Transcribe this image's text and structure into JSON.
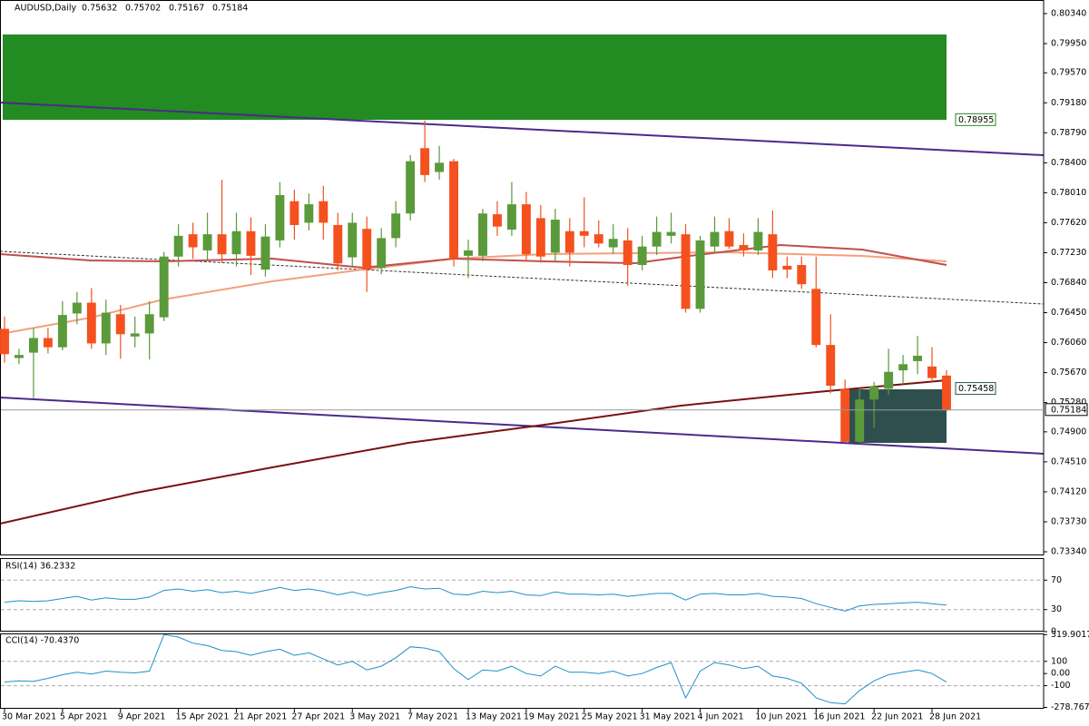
{
  "chart_data": [
    {
      "type": "candlestick",
      "title": "AUDUSD,Daily",
      "categories": [
        "30 Mar 2021",
        null,
        null,
        null,
        "5 Apr 2021",
        null,
        null,
        null,
        "9 Apr 2021",
        null,
        null,
        null,
        "15 Apr 2021",
        null,
        null,
        null,
        "21 Apr 2021",
        null,
        null,
        null,
        "27 Apr 2021",
        null,
        null,
        null,
        "3 May 2021",
        null,
        null,
        null,
        "7 May 2021",
        null,
        null,
        null,
        "13 May 2021",
        null,
        null,
        null,
        "19 May 2021",
        null,
        null,
        null,
        "25 May 2021",
        null,
        null,
        null,
        "31 May 2021",
        null,
        null,
        null,
        "4 Jun 2021",
        null,
        null,
        null,
        "10 Jun 2021",
        null,
        null,
        null,
        "16 Jun 2021",
        null,
        null,
        null,
        "22 Jun 2021",
        null,
        null,
        null,
        "28 Jun 2021",
        null
      ],
      "open": [
        0.7624,
        0.7586,
        0.7593,
        0.7612,
        0.76,
        0.7644,
        0.7658,
        0.7605,
        0.7643,
        0.7614,
        0.7618,
        0.7639,
        0.7718,
        0.7747,
        0.7726,
        0.7747,
        0.7721,
        0.7751,
        0.7701,
        0.7739,
        0.779,
        0.7762,
        0.779,
        0.7759,
        0.7717,
        0.7754,
        0.7703,
        0.7742,
        0.7774,
        0.7859,
        0.7828,
        0.7842,
        0.7719,
        0.7719,
        0.7773,
        0.7753,
        0.7786,
        0.7768,
        0.7723,
        0.7751,
        0.7751,
        0.7747,
        0.773,
        0.7739,
        0.7707,
        0.7731,
        0.7745,
        0.7747,
        0.765,
        0.7731,
        0.7751,
        0.7733,
        0.7726,
        0.7747,
        0.7706,
        0.7707,
        0.7676,
        0.7603,
        0.7546,
        0.7477,
        0.7532,
        0.7546,
        0.757,
        0.7582,
        0.7575,
        0.75632
      ],
      "high": [
        0.764,
        0.7598,
        0.7625,
        0.7625,
        0.766,
        0.7672,
        0.7677,
        0.7662,
        0.7655,
        0.764,
        0.766,
        0.7724,
        0.776,
        0.7762,
        0.7775,
        0.7818,
        0.7775,
        0.7769,
        0.776,
        0.7815,
        0.7805,
        0.78,
        0.781,
        0.7775,
        0.7775,
        0.777,
        0.7755,
        0.779,
        0.785,
        0.7895,
        0.7862,
        0.7845,
        0.774,
        0.778,
        0.779,
        0.7815,
        0.7802,
        0.7785,
        0.778,
        0.7768,
        0.7795,
        0.7765,
        0.776,
        0.7755,
        0.7745,
        0.777,
        0.7775,
        0.776,
        0.7745,
        0.777,
        0.7768,
        0.7748,
        0.7768,
        0.7778,
        0.7718,
        0.7718,
        0.7718,
        0.7643,
        0.7558,
        0.7545,
        0.7555,
        0.7598,
        0.759,
        0.7615,
        0.76,
        0.75702
      ],
      "low": [
        0.758,
        0.7578,
        0.7534,
        0.7592,
        0.7596,
        0.763,
        0.7598,
        0.759,
        0.7585,
        0.76,
        0.7584,
        0.7634,
        0.7705,
        0.7715,
        0.7712,
        0.771,
        0.7705,
        0.7694,
        0.7692,
        0.773,
        0.774,
        0.7752,
        0.774,
        0.77,
        0.7705,
        0.7672,
        0.7695,
        0.773,
        0.7765,
        0.7815,
        0.7818,
        0.7705,
        0.769,
        0.7712,
        0.7745,
        0.7745,
        0.7712,
        0.771,
        0.7712,
        0.7705,
        0.773,
        0.773,
        0.7722,
        0.768,
        0.77,
        0.772,
        0.7735,
        0.7645,
        0.7645,
        0.7722,
        0.7728,
        0.7718,
        0.772,
        0.769,
        0.769,
        0.7676,
        0.76,
        0.754,
        0.7477,
        0.7475,
        0.7495,
        0.7538,
        0.7552,
        0.7565,
        0.7555,
        0.75167
      ],
      "close": [
        0.7591,
        0.759,
        0.7612,
        0.76,
        0.7642,
        0.7658,
        0.7605,
        0.7645,
        0.7617,
        0.7618,
        0.7643,
        0.7718,
        0.7745,
        0.773,
        0.7747,
        0.7721,
        0.7751,
        0.7719,
        0.7744,
        0.7798,
        0.7759,
        0.7786,
        0.7762,
        0.7709,
        0.7762,
        0.7701,
        0.7742,
        0.7774,
        0.7842,
        0.7824,
        0.784,
        0.7715,
        0.7726,
        0.7774,
        0.7757,
        0.7786,
        0.7721,
        0.7718,
        0.7766,
        0.7723,
        0.7745,
        0.7735,
        0.7741,
        0.7707,
        0.7731,
        0.775,
        0.775,
        0.765,
        0.7739,
        0.775,
        0.7731,
        0.7726,
        0.775,
        0.77,
        0.7701,
        0.7682,
        0.7603,
        0.755,
        0.7477,
        0.7532,
        0.7549,
        0.7568,
        0.7578,
        0.7589,
        0.756,
        0.75184
      ],
      "up_color": "#5a9a3a",
      "down_color": "#f4511e",
      "ylim": [
        0.73293,
        0.80517
      ],
      "yticks": [
        {
          "value": 0.8034,
          "label": "0.80340"
        },
        {
          "value": 0.7995,
          "label": "0.79950"
        },
        {
          "value": 0.7957,
          "label": "0.79570"
        },
        {
          "value": 0.7918,
          "label": "0.79180"
        },
        {
          "value": 0.7879,
          "label": "0.78790"
        },
        {
          "value": 0.784,
          "label": "0.78400"
        },
        {
          "value": 0.7801,
          "label": "0.78010"
        },
        {
          "value": 0.7762,
          "label": "0.77620"
        },
        {
          "value": 0.7723,
          "label": "0.77230"
        },
        {
          "value": 0.7684,
          "label": "0.76840"
        },
        {
          "value": 0.7645,
          "label": "0.76450"
        },
        {
          "value": 0.7606,
          "label": "0.76060"
        },
        {
          "value": 0.7567,
          "label": "0.75670"
        },
        {
          "value": 0.7528,
          "label": "0.75280"
        },
        {
          "value": 0.749,
          "label": "0.74900"
        },
        {
          "value": 0.7451,
          "label": "0.74510"
        },
        {
          "value": 0.7412,
          "label": "0.74120"
        },
        {
          "value": 0.7373,
          "label": "0.73730"
        },
        {
          "value": 0.7334,
          "label": "0.73340"
        }
      ],
      "levels": [
        {
          "value": 0.78955,
          "color": "#228b22"
        },
        {
          "value": 0.75458,
          "color": "#2f4f4f"
        }
      ]
    },
    {
      "type": "line",
      "title": "RSI(14) 36.2332",
      "color": "#1e90c8",
      "values": [
        40,
        42,
        41,
        42,
        45,
        48,
        43,
        46,
        44,
        44,
        47,
        56,
        58,
        55,
        57,
        53,
        55,
        52,
        56,
        60,
        56,
        58,
        55,
        50,
        54,
        49,
        53,
        56,
        61,
        58,
        59,
        51,
        50,
        55,
        53,
        55,
        50,
        49,
        54,
        51,
        51,
        50,
        51,
        48,
        50,
        52,
        52,
        43,
        51,
        52,
        50,
        50,
        52,
        48,
        47,
        45,
        38,
        33,
        28,
        35,
        37,
        38,
        39,
        40,
        38,
        36.2332
      ],
      "ylim": [
        0,
        100
      ],
      "yticks": [
        70,
        30,
        0
      ],
      "level_lines": [
        70,
        30
      ]
    },
    {
      "type": "line",
      "title": "CCI(14) -70.4370",
      "color": "#1e90c8",
      "values": [
        -70,
        -60,
        -65,
        -40,
        -10,
        10,
        -5,
        20,
        10,
        5,
        20,
        320,
        300,
        250,
        230,
        190,
        180,
        150,
        180,
        200,
        150,
        170,
        120,
        70,
        100,
        30,
        60,
        130,
        220,
        210,
        180,
        40,
        -50,
        30,
        20,
        60,
        0,
        -20,
        60,
        10,
        10,
        0,
        20,
        -20,
        0,
        50,
        90,
        -200,
        20,
        90,
        70,
        40,
        60,
        -20,
        -40,
        -80,
        -200,
        -240,
        -250,
        -140,
        -60,
        -10,
        10,
        30,
        0,
        -70.437
      ],
      "ylim": [
        -290,
        330
      ],
      "yticks": [
        319.9017,
        100,
        {
          "value": 0,
          "label": "0.00"
        },
        -100,
        -278.7672
      ],
      "level_lines": [
        100,
        -100
      ]
    }
  ]
}
